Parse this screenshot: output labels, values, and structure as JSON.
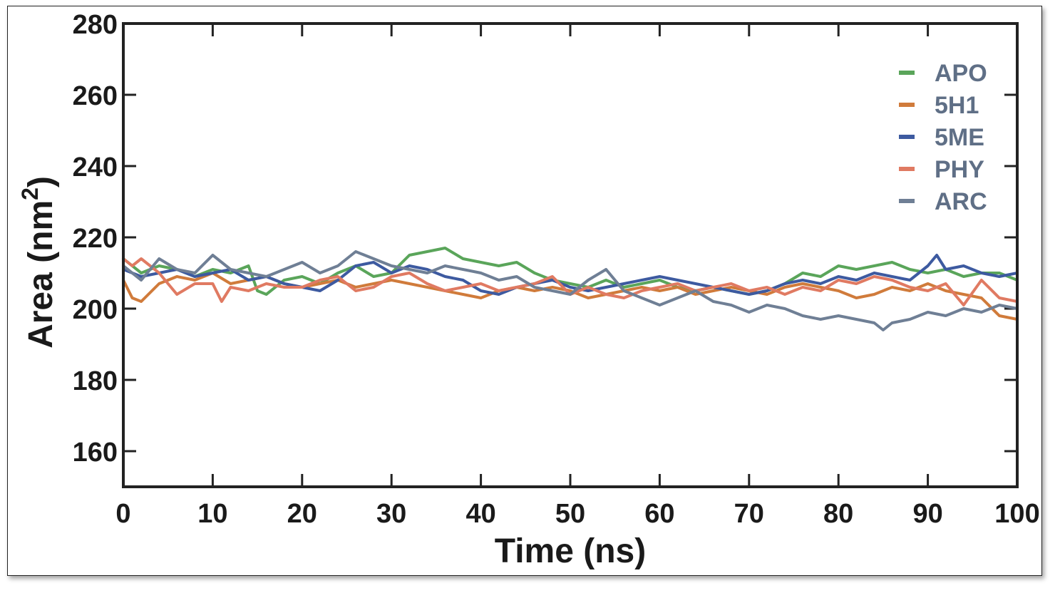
{
  "chart_data": {
    "type": "line",
    "xlabel": "Time (ns)",
    "ylabel": "Area (nm",
    "ylabel_sup": "2",
    "ylabel_close": ")",
    "xlim": [
      0,
      100
    ],
    "ylim": [
      150,
      280
    ],
    "xticks": [
      0,
      10,
      20,
      30,
      40,
      50,
      60,
      70,
      80,
      90,
      100
    ],
    "yticks": [
      160,
      180,
      200,
      220,
      240,
      260,
      280
    ],
    "grid": false,
    "legend_position": "top-right",
    "series": [
      {
        "name": "APO",
        "color": "#5aa55a",
        "x": [
          0,
          2,
          4,
          6,
          8,
          10,
          12,
          14,
          15,
          16,
          18,
          20,
          22,
          24,
          26,
          28,
          30,
          32,
          34,
          36,
          38,
          40,
          42,
          44,
          46,
          48,
          50,
          52,
          54,
          56,
          58,
          60,
          62,
          64,
          66,
          68,
          70,
          72,
          74,
          76,
          78,
          80,
          82,
          84,
          86,
          88,
          90,
          92,
          94,
          96,
          98,
          100
        ],
        "y": [
          214,
          210,
          212,
          211,
          209,
          211,
          210,
          212,
          205,
          204,
          208,
          209,
          207,
          210,
          212,
          209,
          210,
          215,
          216,
          217,
          214,
          213,
          212,
          213,
          210,
          208,
          207,
          206,
          208,
          206,
          207,
          208,
          206,
          205,
          206,
          205,
          204,
          205,
          207,
          210,
          209,
          212,
          211,
          212,
          213,
          211,
          210,
          211,
          209,
          210,
          210,
          208
        ]
      },
      {
        "name": "5H1",
        "color": "#d07b3b",
        "x": [
          0,
          1,
          2,
          4,
          6,
          8,
          10,
          12,
          14,
          16,
          18,
          20,
          22,
          24,
          26,
          28,
          30,
          32,
          34,
          36,
          38,
          40,
          42,
          44,
          46,
          48,
          50,
          52,
          54,
          56,
          58,
          60,
          62,
          64,
          66,
          68,
          70,
          72,
          74,
          76,
          78,
          80,
          82,
          84,
          86,
          88,
          90,
          92,
          94,
          96,
          98,
          100
        ],
        "y": [
          208,
          203,
          202,
          207,
          209,
          208,
          210,
          207,
          208,
          209,
          207,
          206,
          207,
          208,
          206,
          207,
          208,
          207,
          206,
          205,
          204,
          203,
          205,
          206,
          205,
          206,
          205,
          203,
          204,
          205,
          206,
          205,
          206,
          204,
          205,
          206,
          205,
          204,
          206,
          207,
          206,
          205,
          203,
          204,
          206,
          205,
          207,
          205,
          204,
          203,
          198,
          197
        ]
      },
      {
        "name": "5ME",
        "color": "#3d5aa0",
        "x": [
          0,
          2,
          4,
          6,
          8,
          10,
          12,
          14,
          16,
          18,
          20,
          22,
          24,
          26,
          28,
          30,
          32,
          34,
          36,
          38,
          40,
          42,
          44,
          46,
          48,
          50,
          52,
          54,
          56,
          58,
          60,
          62,
          64,
          66,
          68,
          70,
          72,
          74,
          76,
          78,
          80,
          82,
          84,
          86,
          88,
          90,
          91,
          92,
          94,
          96,
          98,
          100
        ],
        "y": [
          211,
          209,
          210,
          211,
          209,
          210,
          211,
          208,
          209,
          207,
          206,
          205,
          208,
          212,
          213,
          210,
          212,
          211,
          209,
          208,
          205,
          204,
          206,
          207,
          208,
          206,
          205,
          206,
          207,
          208,
          209,
          208,
          207,
          206,
          205,
          204,
          205,
          207,
          208,
          207,
          209,
          208,
          210,
          209,
          208,
          212,
          215,
          211,
          212,
          210,
          209,
          210
        ]
      },
      {
        "name": "PHY",
        "color": "#e07a62",
        "x": [
          0,
          1,
          2,
          4,
          6,
          8,
          10,
          11,
          12,
          14,
          16,
          18,
          20,
          22,
          24,
          26,
          28,
          30,
          32,
          34,
          36,
          38,
          40,
          42,
          44,
          46,
          48,
          50,
          52,
          54,
          56,
          58,
          60,
          62,
          64,
          66,
          68,
          70,
          72,
          74,
          76,
          78,
          80,
          82,
          84,
          86,
          88,
          90,
          92,
          94,
          96,
          98,
          100
        ],
        "y": [
          214,
          212,
          214,
          210,
          204,
          207,
          207,
          202,
          206,
          205,
          207,
          206,
          206,
          208,
          209,
          205,
          206,
          209,
          210,
          207,
          205,
          206,
          207,
          205,
          206,
          207,
          209,
          204,
          206,
          204,
          203,
          205,
          206,
          207,
          205,
          206,
          207,
          205,
          206,
          204,
          206,
          205,
          208,
          207,
          209,
          208,
          206,
          205,
          207,
          201,
          208,
          203,
          202
        ]
      },
      {
        "name": "ARC",
        "color": "#6f7f95",
        "x": [
          0,
          2,
          4,
          6,
          8,
          10,
          12,
          14,
          16,
          18,
          20,
          22,
          24,
          26,
          28,
          30,
          32,
          34,
          36,
          38,
          40,
          42,
          44,
          46,
          48,
          50,
          52,
          54,
          56,
          58,
          60,
          62,
          64,
          66,
          68,
          70,
          72,
          74,
          76,
          78,
          80,
          82,
          84,
          85,
          86,
          88,
          90,
          92,
          94,
          96,
          98,
          100
        ],
        "y": [
          212,
          208,
          214,
          211,
          210,
          215,
          211,
          210,
          209,
          211,
          213,
          210,
          212,
          216,
          214,
          212,
          211,
          210,
          212,
          211,
          210,
          208,
          209,
          206,
          205,
          204,
          208,
          211,
          205,
          203,
          201,
          203,
          205,
          202,
          201,
          199,
          201,
          200,
          198,
          197,
          198,
          197,
          196,
          194,
          196,
          197,
          199,
          198,
          200,
          199,
          201,
          200
        ]
      }
    ]
  }
}
